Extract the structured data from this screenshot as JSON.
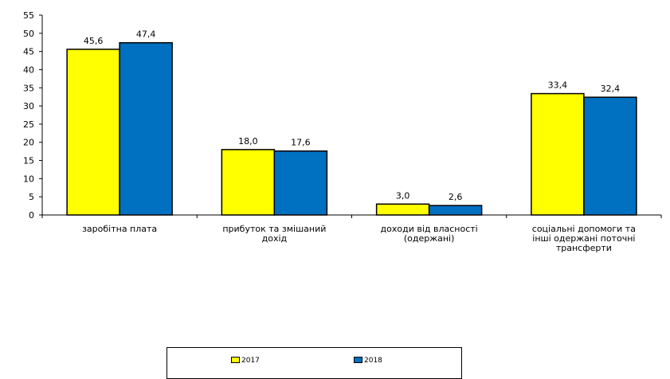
{
  "chart_data": {
    "type": "bar",
    "categories": [
      [
        "заробітна плата"
      ],
      [
        "прибуток та змішаний",
        "дохід"
      ],
      [
        "доходи від власності",
        "(одержані)"
      ],
      [
        "соціальні допомоги та",
        "інші одержані поточні",
        "трансферти"
      ]
    ],
    "series": [
      {
        "name": "2017",
        "color": "#ffff00",
        "values": [
          45.6,
          18.0,
          3.0,
          33.4
        ],
        "labels": [
          "45,6",
          "18,0",
          "3,0",
          "33,4"
        ]
      },
      {
        "name": "2018",
        "color": "#0070c0",
        "values": [
          47.4,
          17.6,
          2.6,
          32.4
        ],
        "labels": [
          "47,4",
          "17,6",
          "2,6",
          "32,4"
        ]
      }
    ],
    "ylim": [
      0,
      55
    ],
    "yticks": [
      0,
      5,
      10,
      15,
      20,
      25,
      30,
      35,
      40,
      45,
      50,
      55
    ],
    "title": "",
    "xlabel": "",
    "ylabel": "",
    "grid": false,
    "legend_position": "bottom"
  }
}
